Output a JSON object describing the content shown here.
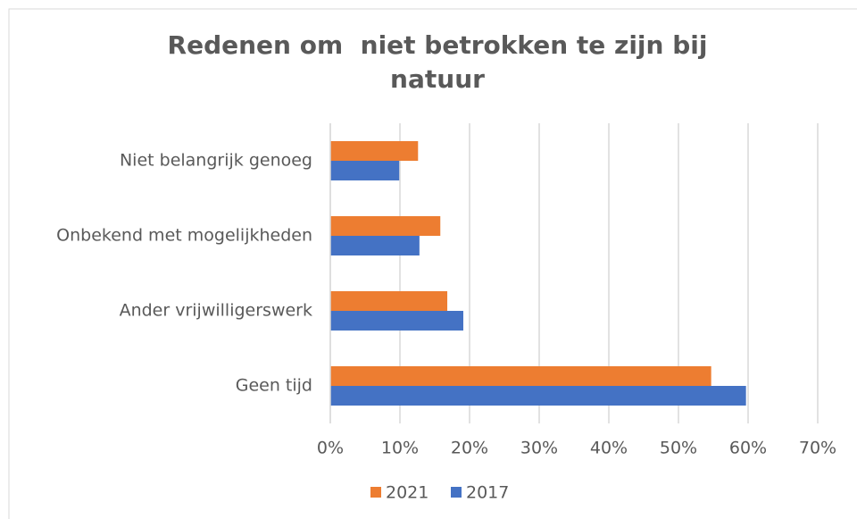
{
  "chart_data": {
    "type": "hbar",
    "title": "Redenen om  niet betrokken te zijn bij natuur",
    "categories": [
      "Niet belangrijk genoeg",
      "Onbekend met mogelijkheden",
      "Ander vrijwilligerswerk",
      "Geen tijd"
    ],
    "series": [
      {
        "name": "2021",
        "color": "#ed7d31",
        "values": [
          12.6,
          15.8,
          16.8,
          54.7
        ]
      },
      {
        "name": "2017",
        "color": "#4472c4",
        "values": [
          9.9,
          12.8,
          19.1,
          59.7
        ]
      }
    ],
    "xlim": [
      0,
      70
    ],
    "xticks": [
      {
        "value": 0,
        "label": "0%"
      },
      {
        "value": 10,
        "label": "10%"
      },
      {
        "value": 20,
        "label": "20%"
      },
      {
        "value": 30,
        "label": "30%"
      },
      {
        "value": 40,
        "label": "40%"
      },
      {
        "value": 50,
        "label": "50%"
      },
      {
        "value": 60,
        "label": "60%"
      },
      {
        "value": 70,
        "label": "70%"
      }
    ],
    "grid": true,
    "legend": "bottom"
  }
}
